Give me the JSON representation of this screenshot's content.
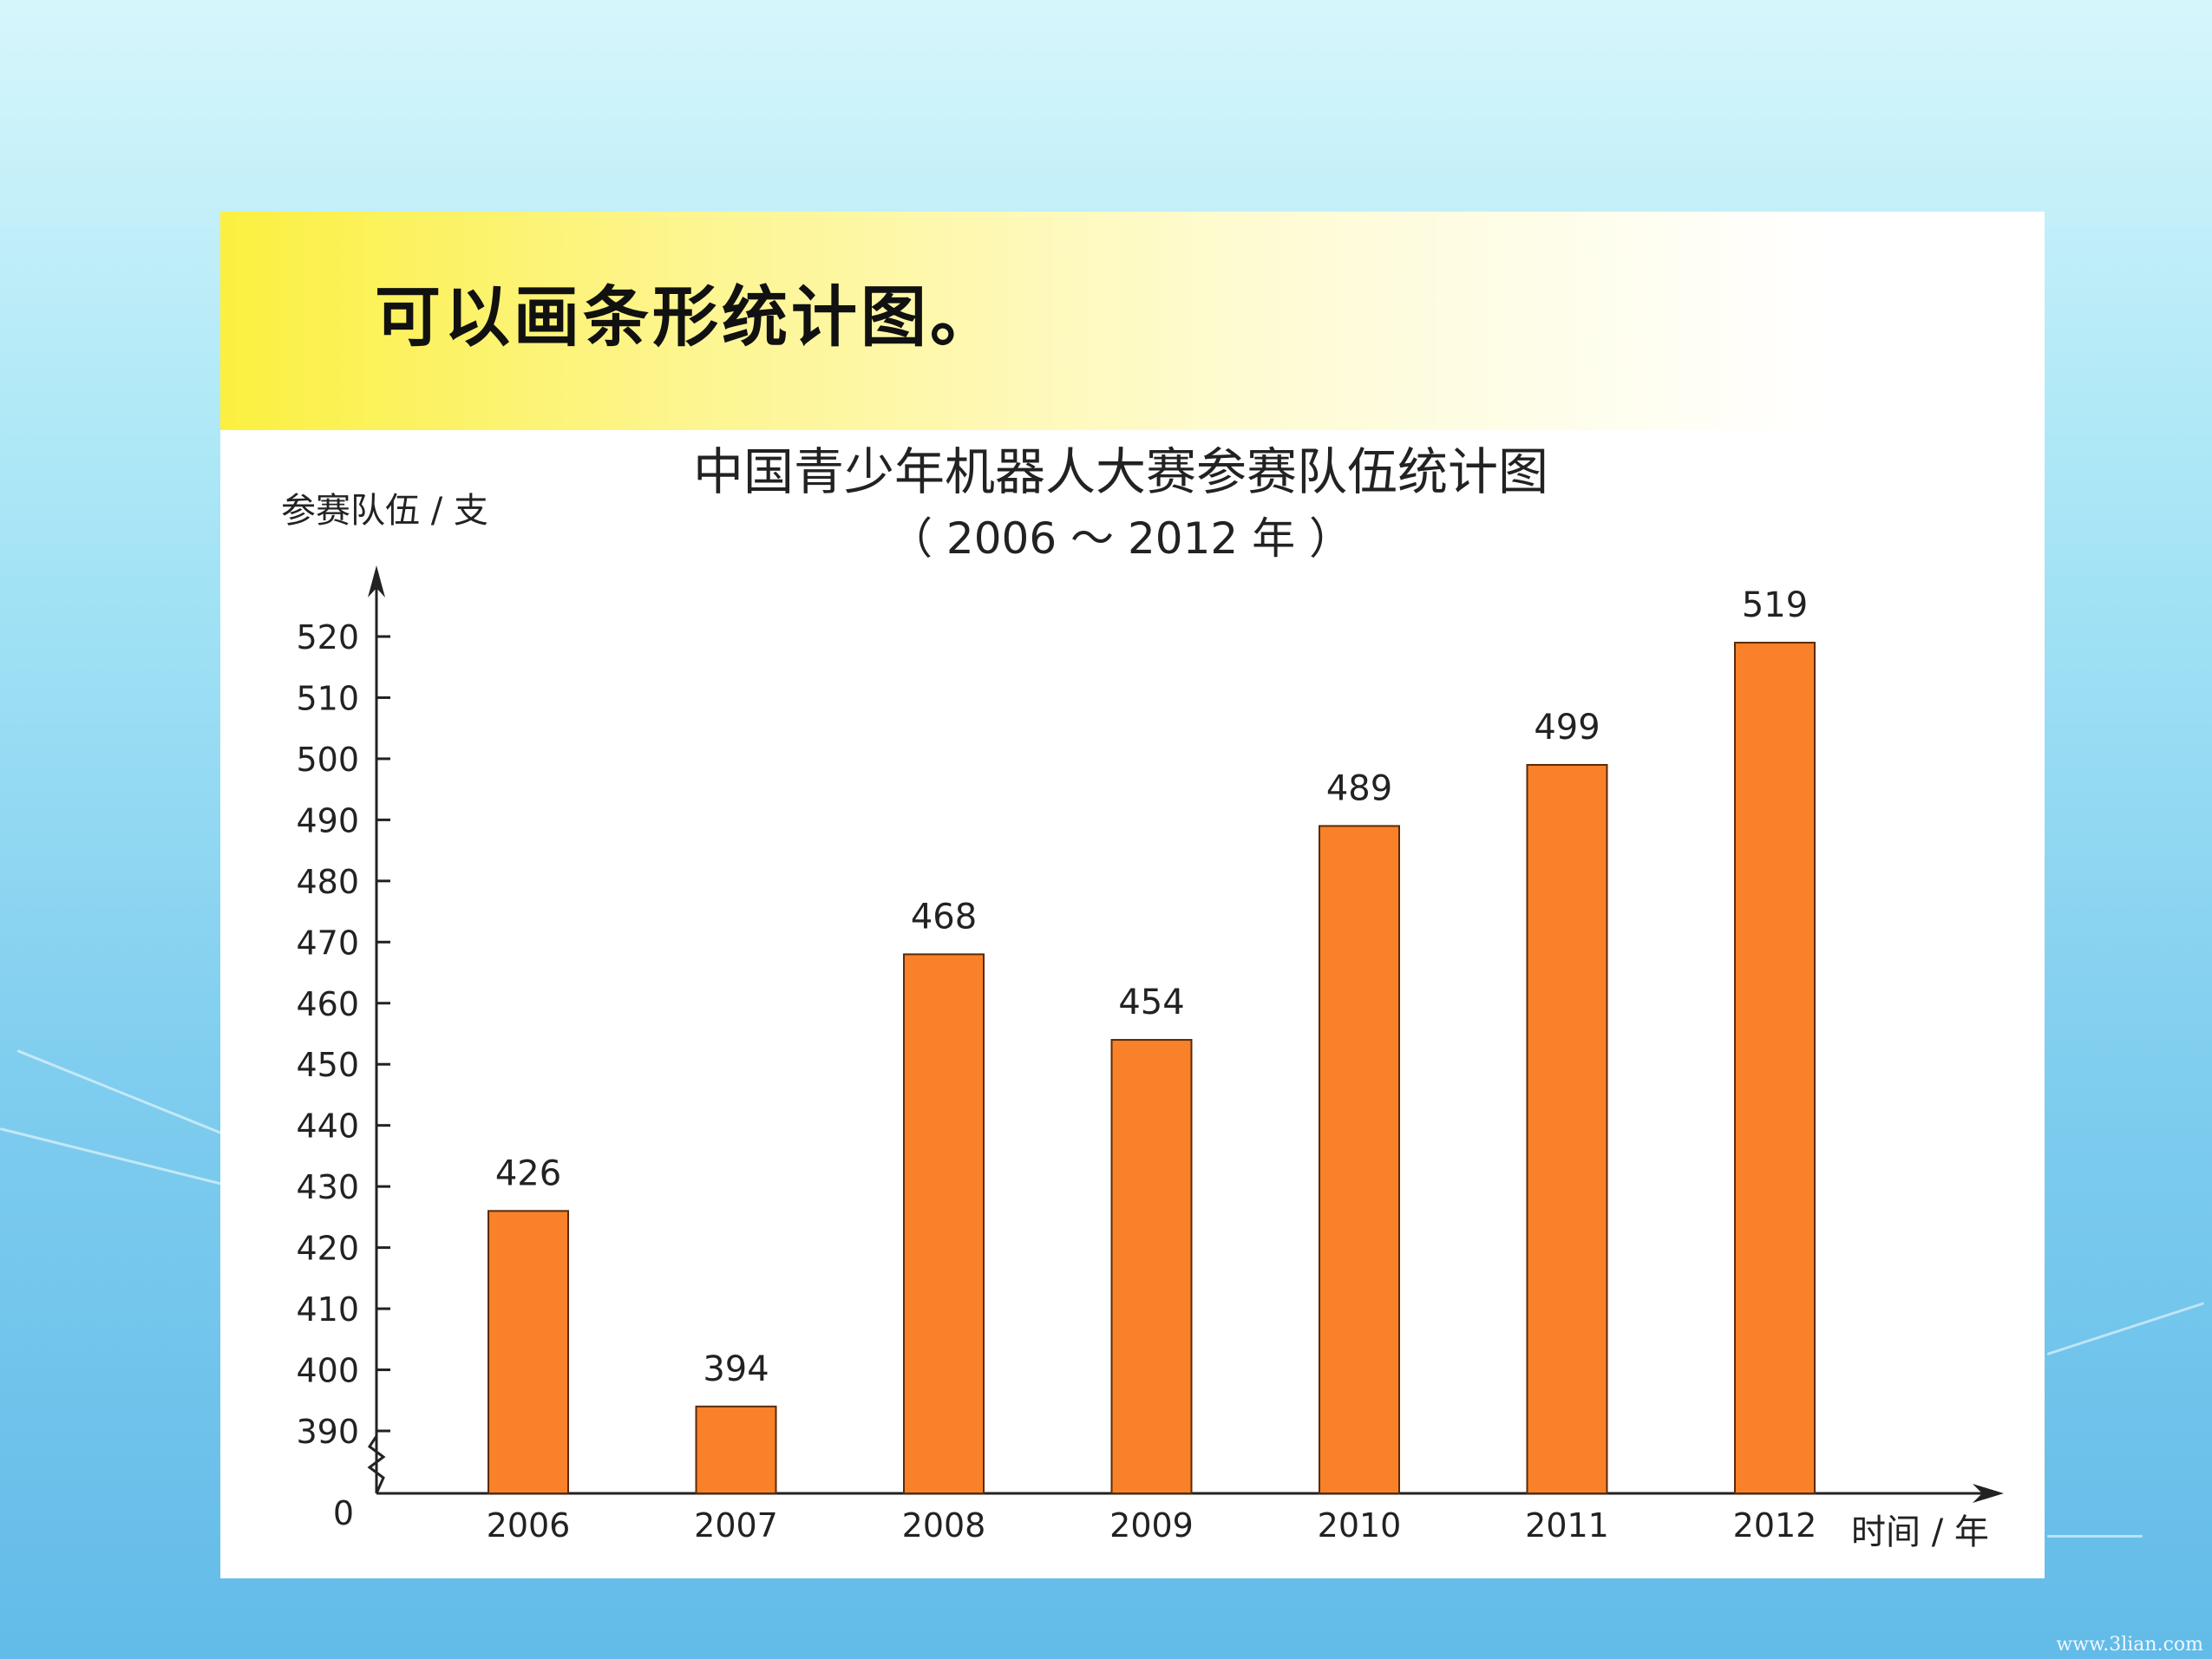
{
  "headline": "可以画条形统计图。",
  "chart_data": {
    "type": "bar",
    "title": "中国青少年机器人大赛参赛队伍统计图",
    "subtitle": "（ 2006 ～ 2012 年 ）",
    "ylabel": "参赛队伍 / 支",
    "xlabel": "时间 / 年",
    "categories": [
      "2006",
      "2007",
      "2008",
      "2009",
      "2010",
      "2011",
      "2012"
    ],
    "values": [
      426,
      394,
      468,
      454,
      489,
      499,
      519
    ],
    "y_ticks": [
      390,
      400,
      410,
      420,
      430,
      440,
      450,
      460,
      470,
      480,
      490,
      500,
      510,
      520
    ],
    "y_origin_label": "0",
    "ylim": [
      390,
      520
    ],
    "axis_break": true,
    "grid": false,
    "bar_color": "#f8812a"
  },
  "footer_mark": "www.3lian.com"
}
